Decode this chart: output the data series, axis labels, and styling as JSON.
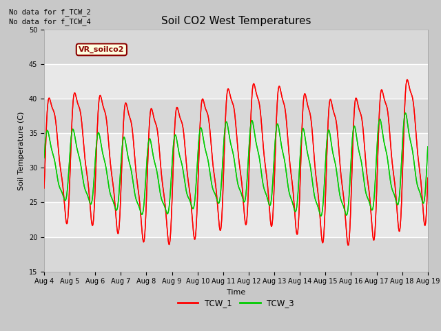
{
  "title": "Soil CO2 West Temperatures",
  "xlabel": "Time",
  "ylabel": "Soil Temperature (C)",
  "ylim": [
    15,
    50
  ],
  "xlim": [
    0,
    15
  ],
  "fig_facecolor": "#c8c8c8",
  "ax_facecolor": "#e8e8e8",
  "grid_color": "#ffffff",
  "no_data_text": [
    "No data for f_TCW_2",
    "No data for f_TCW_4"
  ],
  "annotation_text": "VR_soilco2",
  "xtick_labels": [
    "Aug 4",
    "Aug 5",
    "Aug 6",
    "Aug 7",
    "Aug 8",
    "Aug 9",
    "Aug 10",
    "Aug 11",
    "Aug 12",
    "Aug 13",
    "Aug 14",
    "Aug 15",
    "Aug 16",
    "Aug 17",
    "Aug 18",
    "Aug 19"
  ],
  "ytick_values": [
    15,
    20,
    25,
    30,
    35,
    40,
    45,
    50
  ],
  "legend_entries": [
    "TCW_1",
    "TCW_3"
  ],
  "line_colors": [
    "#ff0000",
    "#00cc00"
  ],
  "line_width": 1.0,
  "title_fontsize": 11,
  "label_fontsize": 8,
  "tick_fontsize": 7
}
